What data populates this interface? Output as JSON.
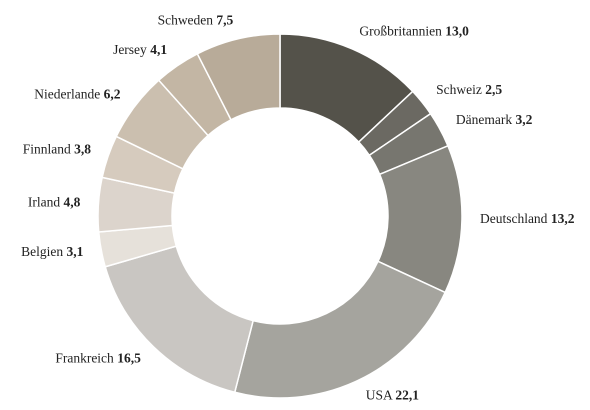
{
  "chart_data": {
    "type": "donut",
    "categories": [
      "Großbritannien",
      "Schweiz",
      "Dänemark",
      "Deutschland",
      "USA",
      "Frankreich",
      "Belgien",
      "Irland",
      "Finnland",
      "Niederlande",
      "Jersey",
      "Schweden"
    ],
    "values": [
      13.0,
      2.5,
      3.2,
      13.2,
      22.1,
      16.5,
      3.1,
      4.8,
      3.8,
      6.2,
      4.1,
      7.5
    ],
    "value_labels": [
      "13,0",
      "2,5",
      "3,2",
      "13,2",
      "22,1",
      "16,5",
      "3,1",
      "4,8",
      "3,8",
      "6,2",
      "4,1",
      "7,5"
    ],
    "colors": [
      "#54524a",
      "#6b6962",
      "#77766f",
      "#888780",
      "#a5a49e",
      "#c9c6c2",
      "#e6e1da",
      "#dcd4cc",
      "#d6cbbe",
      "#cbbfaf",
      "#c3b6a4",
      "#b8ab99"
    ]
  }
}
